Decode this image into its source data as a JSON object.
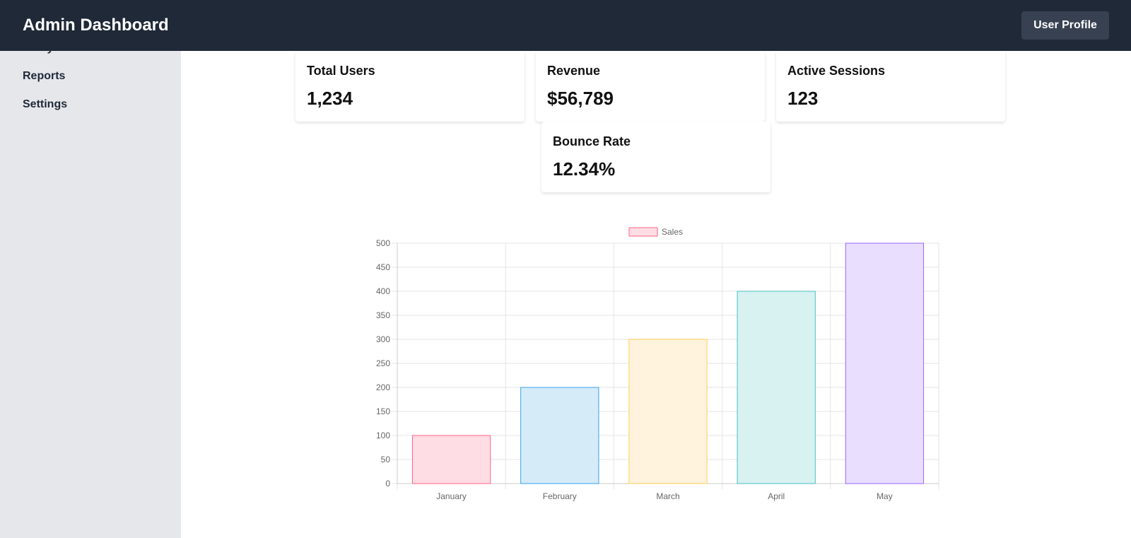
{
  "header": {
    "title": "Admin Dashboard",
    "profile_button": "User Profile"
  },
  "sidebar": {
    "items": [
      {
        "label": "Analytics"
      },
      {
        "label": "Reports"
      },
      {
        "label": "Settings"
      }
    ]
  },
  "stats": [
    {
      "title": "Total Users",
      "value": "1,234"
    },
    {
      "title": "Revenue",
      "value": "$56,789"
    },
    {
      "title": "Active Sessions",
      "value": "123"
    },
    {
      "title": "Bounce Rate",
      "value": "12.34%"
    }
  ],
  "chart_data": {
    "type": "bar",
    "categories": [
      "January",
      "February",
      "March",
      "April",
      "May"
    ],
    "series": [
      {
        "name": "Sales",
        "values": [
          100,
          200,
          300,
          400,
          500
        ]
      }
    ],
    "ylim": [
      0,
      500
    ],
    "yticks": [
      0,
      50,
      100,
      150,
      200,
      250,
      300,
      350,
      400,
      450,
      500
    ],
    "grid": true,
    "legend": "top-center",
    "bar_fills": [
      "#ffdde4",
      "#d6ebf8",
      "#fff3de",
      "#d8f1f1",
      "#e9defe"
    ],
    "bar_strokes": [
      "#ff6384",
      "#36a2eb",
      "#ffce56",
      "#4bc0c0",
      "#9966ff"
    ],
    "legend_fill": "#ffdde4",
    "legend_stroke": "#ff6384"
  }
}
